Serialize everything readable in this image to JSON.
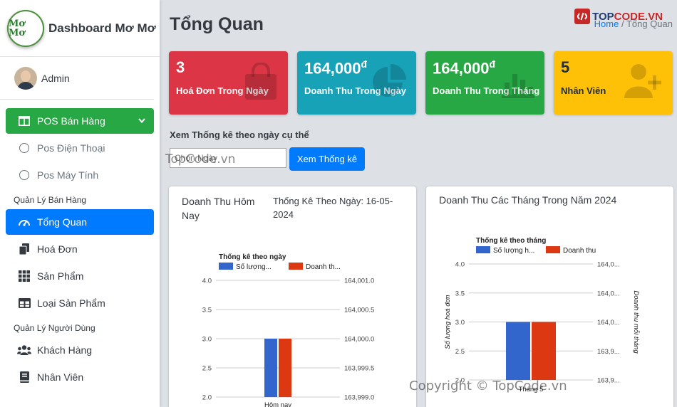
{
  "brand": {
    "title": "Dashboard Mơ Mơ",
    "logo_text": "Mơ Mơ"
  },
  "user": {
    "name": "Admin"
  },
  "nav": {
    "pos_label": "POS Bán Hàng",
    "pos_phone": "Pos Điện Thoại",
    "pos_pc": "Pos Máy Tính",
    "header_sales": "Quản Lý Bán Hàng",
    "overview": "Tổng Quan",
    "invoices": "Hoá Đơn",
    "products": "Sản Phẩm",
    "categories": "Loại Sản Phẩm",
    "header_users": "Quản Lý Người Dùng",
    "customers": "Khách Hàng",
    "staff": "Nhân Viên"
  },
  "page": {
    "title": "Tổng Quan",
    "breadcrumb_home": "Home",
    "breadcrumb_current": "Tổng Quan"
  },
  "stats": [
    {
      "value": "3",
      "label": "Hoá Đơn Trong Ngày",
      "color": "#dc3545",
      "icon": "shopping-bag-icon"
    },
    {
      "value": "164,000",
      "unit": "đ",
      "label": "Doanh Thu Trong Ngày",
      "color": "#17a2b8",
      "icon": "pie-chart-icon"
    },
    {
      "value": "164,000",
      "unit": "đ",
      "label": "Doanh Thu Trong Tháng",
      "color": "#28a745",
      "icon": "bar-chart-icon"
    },
    {
      "value": "5",
      "label": "Nhân Viên",
      "color": "#ffc107",
      "icon": "user-plus-icon"
    }
  ],
  "filter": {
    "title": "Xem Thống kê theo ngày cụ thể",
    "placeholder": "Chọn Ngày",
    "button": "Xem Thống kê"
  },
  "card_today": {
    "title": "Doanh Thu Hôm Nay",
    "subtitle": "Thống Kê Theo Ngày: 16-05-2024"
  },
  "card_year": {
    "title": "Doanh Thu Các Tháng Trong Năm 2024"
  },
  "watermarks": {
    "topcode_logo_a": "TOP",
    "topcode_logo_b": "CODE.VN",
    "topcode": "TopCode.vn",
    "copyright": "Copyright © TopCode.vn"
  },
  "chart_data": [
    {
      "type": "bar",
      "title": "Thống kê theo ngày",
      "categories": [
        "Hôm nay"
      ],
      "series": [
        {
          "name": "Số lượng...",
          "values": [
            3
          ],
          "axis": "left",
          "color": "#3366cc"
        },
        {
          "name": "Doanh th...",
          "values": [
            164000
          ],
          "axis": "right",
          "color": "#dc3912"
        }
      ],
      "left_ticks": [
        "4.0",
        "3.5",
        "3.0",
        "2.5",
        "2.0"
      ],
      "right_ticks": [
        "164,001.0",
        "164,000.5",
        "164,000.0",
        "163,999.5",
        "163,999.0"
      ],
      "ylim_left": [
        2.0,
        4.0
      ],
      "ylim_right": [
        163999,
        164001
      ],
      "legend": "top-left"
    },
    {
      "type": "bar",
      "title": "Thống kê theo tháng",
      "categories": [
        "Tháng 5"
      ],
      "series": [
        {
          "name": "Số lượng h...",
          "values": [
            3
          ],
          "axis": "left",
          "color": "#3366cc"
        },
        {
          "name": "Doanh thu",
          "values": [
            164000
          ],
          "axis": "right",
          "color": "#dc3912"
        }
      ],
      "left_ticks": [
        "4.0",
        "3.5",
        "3.0",
        "2.5",
        "2.0"
      ],
      "right_ticks": [
        "164,0...",
        "164,0...",
        "164,0...",
        "163,9...",
        "163,9..."
      ],
      "ylabel_left": "Số lượng hoá đơn",
      "ylabel_right": "Doanh thu mỗi tháng",
      "ylim_left": [
        2.0,
        4.0
      ],
      "ylim_right": [
        163999,
        164001
      ],
      "legend": "top-left"
    }
  ]
}
